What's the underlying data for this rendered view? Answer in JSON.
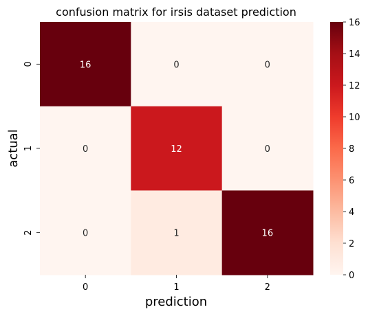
{
  "chart_data": {
    "type": "heatmap",
    "title": "confusion matrix for irsis dataset prediction",
    "xlabel": "prediction",
    "ylabel": "actual",
    "x_categories": [
      "0",
      "1",
      "2"
    ],
    "y_categories": [
      "0",
      "1",
      "2"
    ],
    "values": [
      [
        16,
        0,
        0
      ],
      [
        0,
        12,
        0
      ],
      [
        0,
        1,
        16
      ]
    ],
    "colormap": "Reds",
    "colorbar": {
      "range": [
        0,
        16
      ],
      "ticks": [
        "0",
        "2",
        "4",
        "6",
        "8",
        "10",
        "12",
        "14",
        "16"
      ]
    },
    "colors": {
      "low": "#fff5f0",
      "high": "#67000d"
    }
  }
}
